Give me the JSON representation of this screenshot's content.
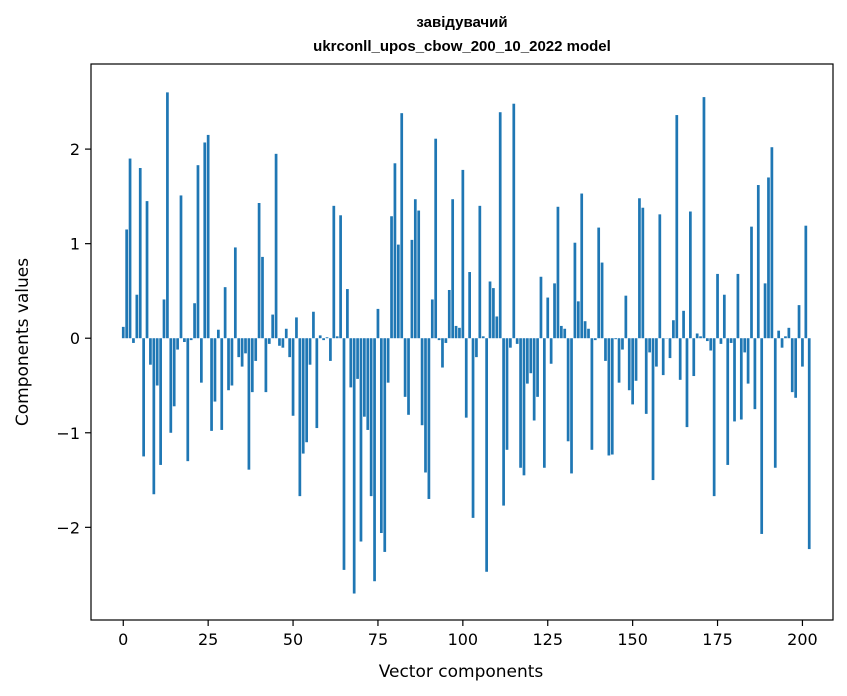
{
  "chart_data": {
    "type": "bar",
    "title_line1": "завідувачий",
    "title_line2": "ukrconll_upos_cbow_200_10_2022 model",
    "xlabel": "Vector components",
    "ylabel": "Components values",
    "xlim": [
      -9.5,
      209
    ],
    "ylim": [
      -2.98,
      2.9
    ],
    "xticks": [
      0,
      25,
      50,
      75,
      100,
      125,
      150,
      175,
      200
    ],
    "yticks": [
      -2,
      -1,
      0,
      1,
      2
    ],
    "bar_color": "#1f77b4",
    "grid": false,
    "legend": "none",
    "values": [
      0.12,
      1.15,
      1.9,
      -0.05,
      0.46,
      1.8,
      -1.25,
      1.45,
      -0.28,
      -1.65,
      -0.5,
      -1.34,
      0.41,
      2.6,
      -1.0,
      -0.72,
      -0.12,
      1.51,
      -0.04,
      -1.3,
      -0.02,
      0.37,
      1.83,
      -0.47,
      2.07,
      2.15,
      -0.98,
      -0.67,
      0.09,
      -0.97,
      0.54,
      -0.55,
      -0.5,
      0.96,
      -0.2,
      -0.3,
      -0.16,
      -1.39,
      -0.57,
      -0.24,
      1.43,
      0.86,
      -0.57,
      -0.06,
      0.25,
      1.95,
      -0.08,
      -0.1,
      0.1,
      -0.2,
      -0.82,
      0.22,
      -1.67,
      -1.22,
      -1.1,
      -0.28,
      0.28,
      -0.95,
      0.03,
      -0.02,
      0.01,
      -0.24,
      1.4,
      0.02,
      1.3,
      -2.45,
      0.52,
      -0.52,
      -2.7,
      -0.43,
      -2.15,
      -0.83,
      -0.97,
      -1.67,
      -2.57,
      0.31,
      -2.06,
      -2.26,
      -0.47,
      1.29,
      1.85,
      0.99,
      2.38,
      -0.62,
      -0.81,
      1.04,
      1.47,
      1.35,
      -0.92,
      -1.42,
      -1.7,
      0.41,
      2.11,
      -0.02,
      -0.31,
      -0.05,
      0.51,
      1.47,
      0.13,
      0.11,
      1.78,
      -0.84,
      0.7,
      -1.9,
      -0.2,
      1.4,
      0.02,
      -2.47,
      0.6,
      0.53,
      0.23,
      2.39,
      -1.77,
      -1.18,
      -0.1,
      2.48,
      -0.06,
      -1.37,
      -1.45,
      -0.48,
      -0.37,
      -0.87,
      -0.62,
      0.65,
      -1.37,
      0.43,
      -0.27,
      0.58,
      1.39,
      0.13,
      0.1,
      -1.09,
      -1.43,
      1.01,
      0.39,
      1.53,
      0.18,
      0.1,
      -1.18,
      -0.02,
      1.17,
      0.8,
      -0.24,
      -1.24,
      -1.23,
      -0.01,
      -0.47,
      -0.12,
      0.45,
      -0.55,
      -0.7,
      -0.45,
      1.48,
      1.38,
      -0.8,
      -0.15,
      -1.5,
      -0.3,
      1.31,
      -0.39,
      0.0,
      -0.21,
      0.19,
      2.36,
      -0.44,
      0.29,
      -0.94,
      1.34,
      -0.4,
      0.05,
      0.02,
      2.55,
      -0.03,
      -0.13,
      -1.67,
      0.68,
      -0.06,
      0.46,
      -1.34,
      -0.05,
      -0.88,
      0.68,
      -0.86,
      -0.15,
      -0.48,
      1.18,
      -0.75,
      1.62,
      -2.07,
      0.58,
      1.7,
      2.02,
      -1.37,
      0.08,
      -0.1,
      0.02,
      0.11,
      -0.57,
      -0.63,
      0.35,
      -0.3,
      1.19,
      -2.23
    ]
  }
}
